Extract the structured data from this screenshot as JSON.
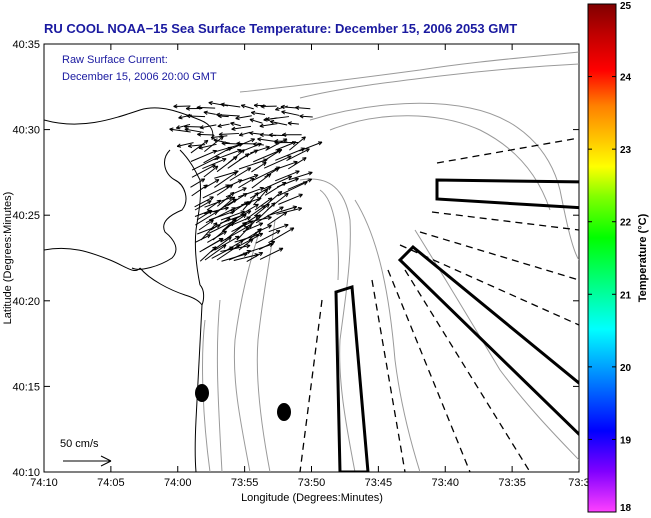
{
  "title": "RU COOL  NOAA−15  Sea Surface Temperature:  December 15, 2006 2053 GMT",
  "overlay": {
    "line1": "Raw Surface Current:",
    "line2": "December 15, 2006 20:00 GMT"
  },
  "scale_label": "50 cm/s",
  "axes": {
    "xlabel": "Longitude (Degrees:Minutes)",
    "ylabel": "Latitude (Degrees:Minutes)",
    "xticks": [
      "74:10",
      "74:05",
      "74:00",
      "73:55",
      "73:50",
      "73:45",
      "73:40",
      "73:35",
      "73:3"
    ],
    "yticks": [
      "40:35",
      "40:30",
      "40:25",
      "40:20",
      "40:15",
      "40:10"
    ]
  },
  "colorbar": {
    "label": "Temperature (°C)",
    "ticks": [
      "25",
      "24",
      "23",
      "22",
      "21",
      "20",
      "19",
      "18"
    ],
    "range": [
      18,
      25
    ],
    "colors": [
      "#ff40ff",
      "#8000ff",
      "#0000ff",
      "#0080ff",
      "#00ffff",
      "#00ff80",
      "#00ff00",
      "#80ff00",
      "#ffff00",
      "#ffbf00",
      "#ff8000",
      "#ff0000",
      "#c00000",
      "#800000"
    ]
  },
  "colors": {
    "title": "#1a1aa0",
    "annotation": "#1a1aa0",
    "contour": "#999999",
    "vector": "#000000"
  }
}
